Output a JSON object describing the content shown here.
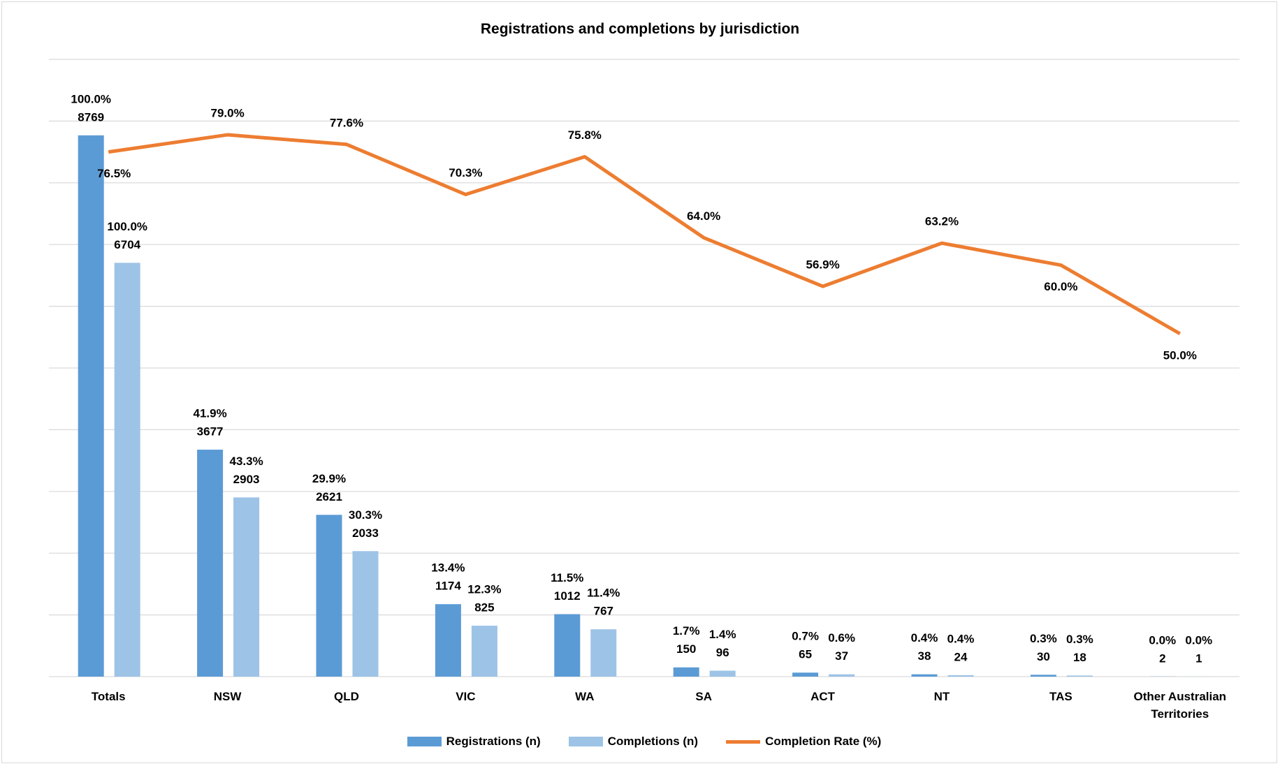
{
  "chart_data": {
    "type": "bar_line",
    "title": "Registrations and completions by jurisdiction",
    "categories": [
      "Totals",
      "NSW",
      "QLD",
      "VIC",
      "WA",
      "SA",
      "ACT",
      "NT",
      "TAS",
      "Other Australian Territories"
    ],
    "ylim": [
      0,
      10000
    ],
    "yticks": [
      0,
      1000,
      2000,
      3000,
      4000,
      5000,
      6000,
      7000,
      8000,
      9000,
      10000
    ],
    "y2lim": [
      0,
      90
    ],
    "grid": true,
    "legend": "bottom",
    "series": [
      {
        "name": "Registrations (n)",
        "type": "bar",
        "color": "#5b9bd5",
        "values": [
          8769,
          3677,
          2621,
          1174,
          1012,
          150,
          65,
          38,
          30,
          2
        ],
        "share_labels": [
          "100.0%",
          "41.9%",
          "29.9%",
          "13.4%",
          "11.5%",
          "1.7%",
          "0.7%",
          "0.4%",
          "0.3%",
          "0.0%"
        ]
      },
      {
        "name": "Completions (n)",
        "type": "bar",
        "color": "#9dc3e6",
        "values": [
          6704,
          2903,
          2033,
          825,
          767,
          96,
          37,
          24,
          18,
          1
        ],
        "share_labels": [
          "100.0%",
          "43.3%",
          "30.3%",
          "12.3%",
          "11.4%",
          "1.4%",
          "0.6%",
          "0.4%",
          "0.3%",
          "0.0%"
        ]
      },
      {
        "name": "Completion Rate (%)",
        "type": "line",
        "axis": "y2",
        "color": "#ed7d31",
        "values": [
          76.5,
          79.0,
          77.6,
          70.3,
          75.8,
          64.0,
          56.9,
          63.2,
          60.0,
          50.0
        ],
        "value_labels": [
          "76.5%",
          "79.0%",
          "77.6%",
          "70.3%",
          "75.8%",
          "64.0%",
          "56.9%",
          "63.2%",
          "60.0%",
          "50.0%"
        ]
      }
    ]
  }
}
